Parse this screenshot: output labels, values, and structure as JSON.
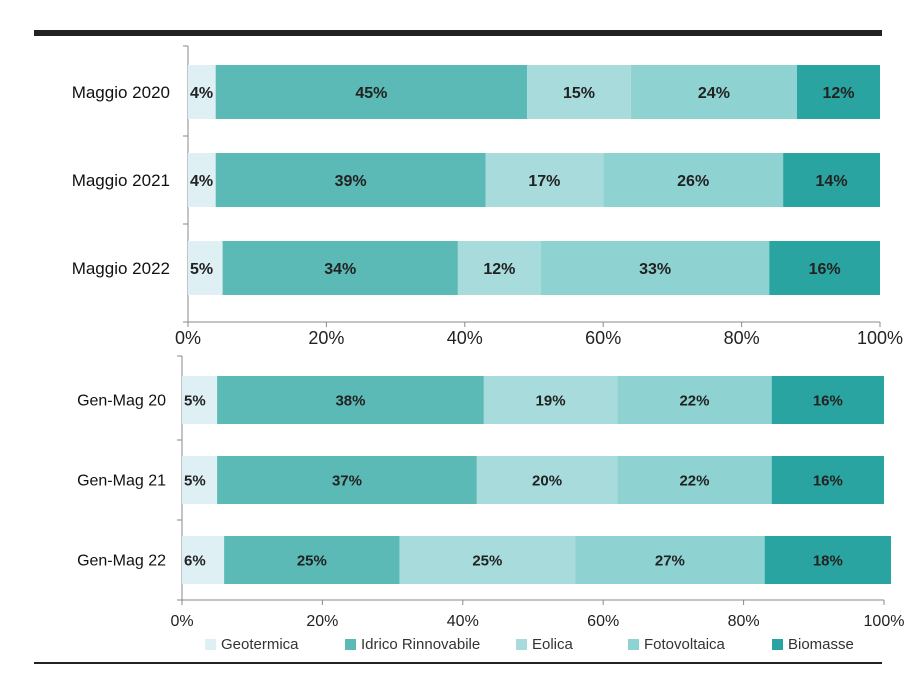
{
  "colors": {
    "Geotermica": "#dff0f5",
    "Idrico Rinnovabile": "#5bbab6",
    "Eolica": "#a8dcdc",
    "Fotovoltaica": "#8ed3d2",
    "Biomasse": "#2aa4a0",
    "rule": "#222222"
  },
  "chart_data": [
    {
      "type": "bar",
      "orientation": "horizontal",
      "stacked": "100%",
      "categories": [
        "Maggio 2020",
        "Maggio 2021",
        "Maggio 2022"
      ],
      "series": [
        {
          "name": "Geotermica",
          "values": [
            4,
            4,
            5
          ],
          "labels": [
            "4%",
            "4%",
            "5%"
          ]
        },
        {
          "name": "Idrico Rinnovabile",
          "values": [
            45,
            39,
            34
          ],
          "labels": [
            "45%",
            "39%",
            "34%"
          ]
        },
        {
          "name": "Eolica",
          "values": [
            15,
            17,
            12
          ],
          "labels": [
            "15%",
            "17%",
            "12%"
          ]
        },
        {
          "name": "Fotovoltaica",
          "values": [
            24,
            26,
            33
          ],
          "labels": [
            "24%",
            "26%",
            "33%"
          ]
        },
        {
          "name": "Biomasse",
          "values": [
            12,
            14,
            16
          ],
          "labels": [
            "12%",
            "14%",
            "16%"
          ]
        }
      ],
      "xlim": [
        0,
        100
      ],
      "xticks": [
        "0%",
        "20%",
        "40%",
        "60%",
        "80%",
        "100%"
      ],
      "grid": false
    },
    {
      "type": "bar",
      "orientation": "horizontal",
      "stacked": "100%",
      "categories": [
        "Gen-Mag 20",
        "Gen-Mag 21",
        "Gen-Mag 22"
      ],
      "series": [
        {
          "name": "Geotermica",
          "values": [
            5,
            5,
            6
          ],
          "labels": [
            "5%",
            "5%",
            "6%"
          ]
        },
        {
          "name": "Idrico Rinnovabile",
          "values": [
            38,
            37,
            25
          ],
          "labels": [
            "38%",
            "37%",
            "25%"
          ]
        },
        {
          "name": "Eolica",
          "values": [
            19,
            20,
            25
          ],
          "labels": [
            "19%",
            "20%",
            "25%"
          ]
        },
        {
          "name": "Fotovoltaica",
          "values": [
            22,
            22,
            27
          ],
          "labels": [
            "22%",
            "22%",
            "27%"
          ]
        },
        {
          "name": "Biomasse",
          "values": [
            16,
            16,
            18
          ],
          "labels": [
            "16%",
            "16%",
            "18%"
          ]
        }
      ],
      "xlim": [
        0,
        100
      ],
      "xticks": [
        "0%",
        "20%",
        "40%",
        "60%",
        "80%",
        "100%"
      ],
      "grid": false
    }
  ],
  "legend": {
    "position": "bottom",
    "items": [
      "Geotermica",
      "Idrico Rinnovabile",
      "Eolica",
      "Fotovoltaica",
      "Biomasse"
    ]
  }
}
